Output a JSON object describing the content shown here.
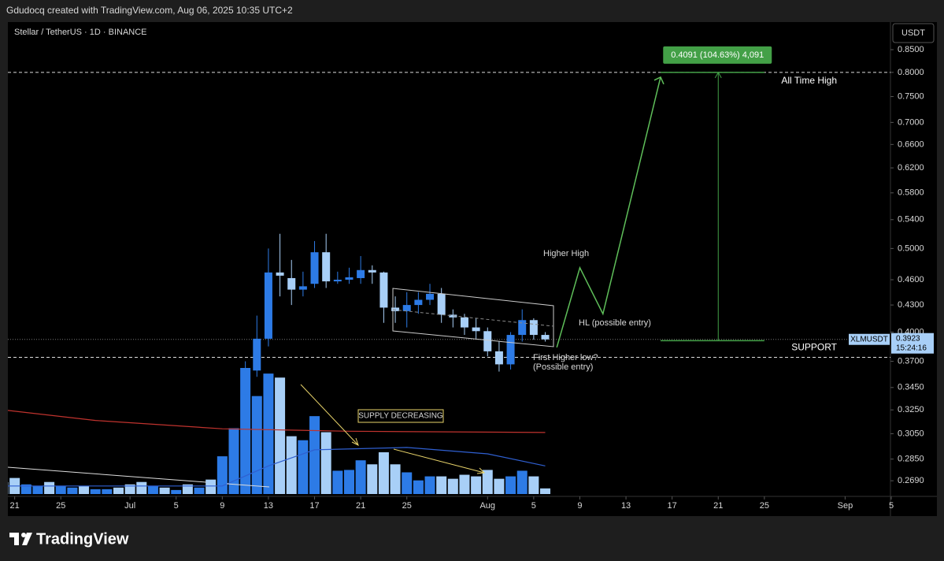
{
  "header": {
    "credit": "Gdudocq created with TradingView.com, Aug 06, 2025 10:35 UTC+2",
    "symbol": "Stellar / TetherUS · 1D · BINANCE",
    "currency": "USDT",
    "brand": "TradingView"
  },
  "chart_data": {
    "type": "candlestick",
    "log_scale": true,
    "up_color": "#2d7be6",
    "down_color": "#a8cff7",
    "xlim": [
      "Jun 20",
      "Sep 5"
    ],
    "xticks": [
      {
        "value": "Jun 21",
        "label": "21"
      },
      {
        "value": "Jun 25",
        "label": "25"
      },
      {
        "value": "Jul 1",
        "label": "Jul"
      },
      {
        "value": "Jul 5",
        "label": "5"
      },
      {
        "value": "Jul 9",
        "label": "9"
      },
      {
        "value": "Jul 13",
        "label": "13"
      },
      {
        "value": "Jul 17",
        "label": "17"
      },
      {
        "value": "Jul 21",
        "label": "21"
      },
      {
        "value": "Jul 25",
        "label": "25"
      },
      {
        "value": "Aug 1",
        "label": "Aug"
      },
      {
        "value": "Aug 5",
        "label": "5"
      },
      {
        "value": "Aug 9",
        "label": "9"
      },
      {
        "value": "Aug 13",
        "label": "13"
      },
      {
        "value": "Aug 17",
        "label": "17"
      },
      {
        "value": "Aug 21",
        "label": "21"
      },
      {
        "value": "Aug 25",
        "label": "25"
      },
      {
        "value": "Sep 1",
        "label": "Sep"
      },
      {
        "value": "Sep 5",
        "label": "5"
      }
    ],
    "ylim": [
      0.258,
      0.915
    ],
    "yticks": [
      {
        "value": 0.85,
        "label": "0.8500"
      },
      {
        "value": 0.8,
        "label": "0.8000"
      },
      {
        "value": 0.75,
        "label": "0.7500"
      },
      {
        "value": 0.7,
        "label": "0.7000"
      },
      {
        "value": 0.66,
        "label": "0.6600"
      },
      {
        "value": 0.62,
        "label": "0.6200"
      },
      {
        "value": 0.58,
        "label": "0.5800"
      },
      {
        "value": 0.54,
        "label": "0.5400"
      },
      {
        "value": 0.5,
        "label": "0.5000"
      },
      {
        "value": 0.46,
        "label": "0.4600"
      },
      {
        "value": 0.43,
        "label": "0.4300"
      },
      {
        "value": 0.4,
        "label": "0.4000"
      },
      {
        "value": 0.37,
        "label": "0.3700"
      },
      {
        "value": 0.345,
        "label": "0.3450"
      },
      {
        "value": 0.325,
        "label": "0.3250"
      },
      {
        "value": 0.305,
        "label": "0.3050"
      },
      {
        "value": 0.285,
        "label": "0.2850"
      },
      {
        "value": 0.269,
        "label": "0.2690"
      }
    ],
    "x": [
      "Jul 11",
      "Jul 12",
      "Jul 13",
      "Jul 14",
      "Jul 15",
      "Jul 16",
      "Jul 17",
      "Jul 18",
      "Jul 19",
      "Jul 20",
      "Jul 21",
      "Jul 22",
      "Jul 23",
      "Jul 24",
      "Jul 25",
      "Jul 26",
      "Jul 27",
      "Jul 28",
      "Jul 29",
      "Jul 30",
      "Jul 31",
      "Aug 1",
      "Aug 2",
      "Aug 3",
      "Aug 4",
      "Aug 5",
      "Aug 6"
    ],
    "open": [
      0.339,
      0.361,
      0.393,
      0.469,
      0.462,
      0.448,
      0.455,
      0.495,
      0.458,
      0.46,
      0.462,
      0.472,
      0.469,
      0.427,
      0.423,
      0.43,
      0.436,
      0.443,
      0.419,
      0.416,
      0.405,
      0.401,
      0.38,
      0.367,
      0.397,
      0.413,
      0.397
    ],
    "high": [
      0.37,
      0.418,
      0.5,
      0.52,
      0.485,
      0.47,
      0.51,
      0.52,
      0.47,
      0.475,
      0.49,
      0.478,
      0.47,
      0.44,
      0.445,
      0.445,
      0.455,
      0.45,
      0.425,
      0.42,
      0.415,
      0.405,
      0.39,
      0.4,
      0.425,
      0.415,
      0.4
    ],
    "low": [
      0.33,
      0.355,
      0.385,
      0.44,
      0.43,
      0.44,
      0.45,
      0.45,
      0.455,
      0.455,
      0.455,
      0.455,
      0.41,
      0.41,
      0.405,
      0.42,
      0.43,
      0.41,
      0.405,
      0.397,
      0.393,
      0.375,
      0.36,
      0.362,
      0.39,
      0.392,
      0.39
    ],
    "close": [
      0.361,
      0.393,
      0.469,
      0.465,
      0.448,
      0.452,
      0.495,
      0.458,
      0.46,
      0.463,
      0.472,
      0.469,
      0.427,
      0.423,
      0.43,
      0.436,
      0.443,
      0.419,
      0.416,
      0.405,
      0.401,
      0.38,
      0.367,
      0.397,
      0.413,
      0.397,
      0.3923
    ],
    "volume": {
      "x": [
        "Jun 20",
        "Jun 21",
        "Jun 22",
        "Jun 23",
        "Jun 24",
        "Jun 25",
        "Jun 26",
        "Jun 27",
        "Jun 28",
        "Jun 29",
        "Jun 30",
        "Jul 1",
        "Jul 2",
        "Jul 3",
        "Jul 4",
        "Jul 5",
        "Jul 6",
        "Jul 7",
        "Jul 8",
        "Jul 9",
        "Jul 10",
        "Jul 11",
        "Jul 12",
        "Jul 13",
        "Jul 14",
        "Jul 15",
        "Jul 16",
        "Jul 17",
        "Jul 18",
        "Jul 19",
        "Jul 20",
        "Jul 21",
        "Jul 22",
        "Jul 23",
        "Jul 24",
        "Jul 25",
        "Jul 26",
        "Jul 27",
        "Jul 28",
        "Jul 29",
        "Jul 30",
        "Jul 31",
        "Aug 1",
        "Aug 2",
        "Aug 3",
        "Aug 4",
        "Aug 5",
        "Aug 6"
      ],
      "values": [
        15,
        20,
        12,
        10,
        15,
        10,
        8,
        10,
        6,
        6,
        8,
        12,
        15,
        10,
        8,
        5,
        12,
        8,
        18,
        47,
        82,
        157,
        122,
        150,
        145,
        72,
        67,
        97,
        77,
        29,
        30,
        42,
        37,
        52,
        37,
        27,
        17,
        22,
        22,
        19,
        24,
        22,
        30,
        19,
        22,
        29,
        22,
        7
      ],
      "colors": [
        "#a8cff7",
        "#a8cff7",
        "#2d7be6",
        "#2d7be6",
        "#a8cff7",
        "#2d7be6",
        "#2d7be6",
        "#a8cff7",
        "#2d7be6",
        "#2d7be6",
        "#a8cff7",
        "#a8cff7",
        "#a8cff7",
        "#2d7be6",
        "#a8cff7",
        "#2d7be6",
        "#a8cff7",
        "#2d7be6",
        "#a8cff7",
        "#2d7be6",
        "#2d7be6",
        "#2d7be6",
        "#2d7be6",
        "#2d7be6",
        "#a8cff7",
        "#a8cff7",
        "#2d7be6",
        "#2d7be6",
        "#a8cff7",
        "#2d7be6",
        "#2d7be6",
        "#2d7be6",
        "#a8cff7",
        "#a8cff7",
        "#a8cff7",
        "#2d7be6",
        "#2d7be6",
        "#2d7be6",
        "#a8cff7",
        "#a8cff7",
        "#a8cff7",
        "#a8cff7",
        "#a8cff7",
        "#a8cff7",
        "#2d7be6",
        "#2d7be6",
        "#a8cff7",
        "#a8cff7"
      ],
      "ma": {
        "x": [
          "Jun 20",
          "Jul 9",
          "Jul 13",
          "Jul 17",
          "Jul 25",
          "Aug 1",
          "Aug 6"
        ],
        "values": [
          10,
          10,
          35,
          55,
          58,
          50,
          35
        ],
        "color": "#2f5fd0"
      }
    },
    "price_ma": {
      "x": [
        "Jun 20",
        "Jun 28",
        "Jul 9",
        "Jul 20",
        "Aug 6"
      ],
      "values": [
        0.325,
        0.316,
        0.309,
        0.307,
        0.306
      ],
      "color": "#c0332e"
    },
    "projection": {
      "x": [
        "Aug 7",
        "Aug 9",
        "Aug 11",
        "Aug 16"
      ],
      "values": [
        0.384,
        0.475,
        0.42,
        0.79
      ],
      "color": "#5fbf5a"
    },
    "measure": {
      "x": [
        "Aug 16",
        "Aug 21",
        "Aug 25"
      ],
      "from": 0.3909,
      "to": 0.8,
      "label": "0.4091 (104.63%) 4,091",
      "color": "#43a047"
    },
    "levels": [
      {
        "value": 0.8,
        "label": "All Time High"
      },
      {
        "value": 0.374,
        "label": "SUPPORT"
      }
    ],
    "last_price": {
      "symbol": "XLMUSDT",
      "value": 0.3923,
      "countdown": "15:24:16"
    },
    "annotations": {
      "higher_high": "Higher High",
      "hl": "HL (possible entry)",
      "first_hl": "First Higher low?",
      "first_hl_2": "(Possible entry)",
      "supply": "SUPPLY DECREASING"
    }
  }
}
